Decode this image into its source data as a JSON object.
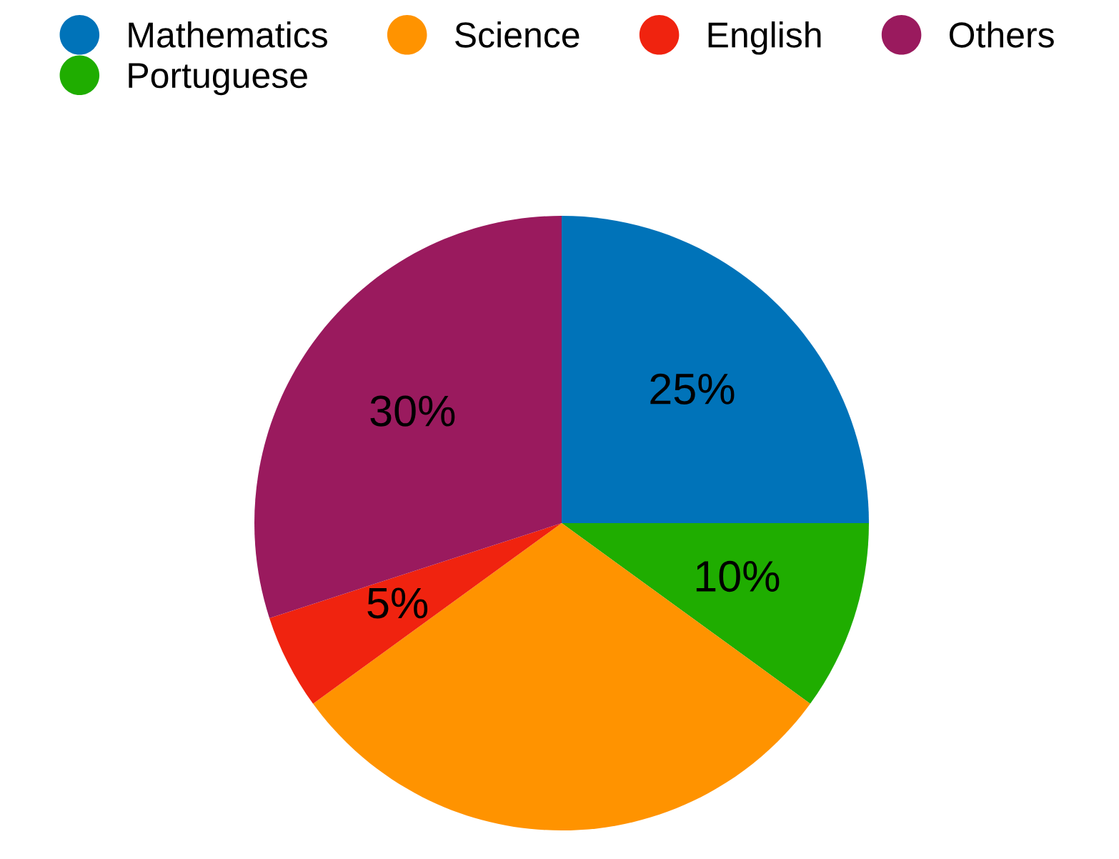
{
  "chart_data": {
    "type": "pie",
    "categories": [
      "Mathematics",
      "Portuguese",
      "Science",
      "English",
      "Others"
    ],
    "values": [
      25,
      10,
      30,
      5,
      30
    ],
    "colors": [
      "#0073b9",
      "#1fad00",
      "#ff9300",
      "#f0230f",
      "#9a1a5e"
    ],
    "value_labels": [
      "25%",
      "10%",
      null,
      "5%",
      "30%"
    ],
    "legend": "top left"
  }
}
